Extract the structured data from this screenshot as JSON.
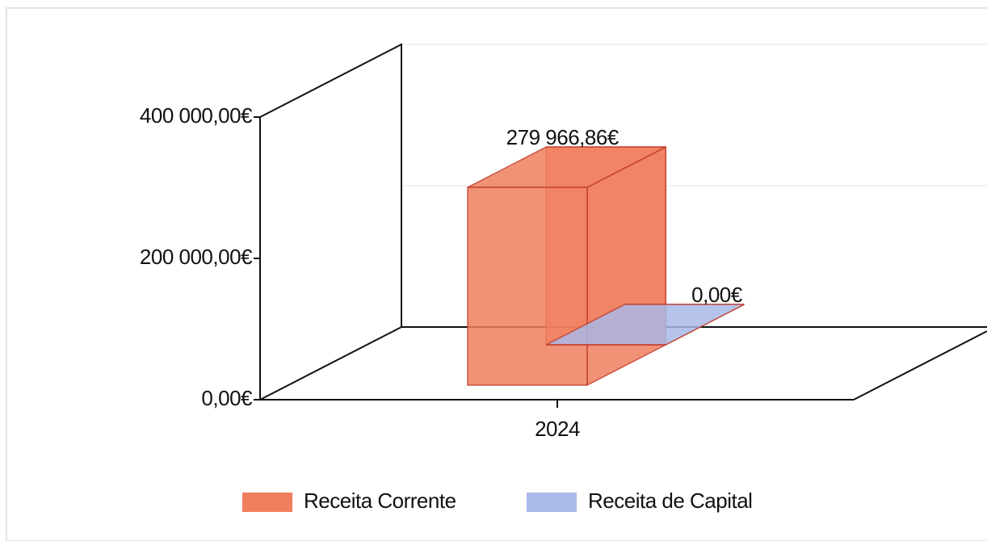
{
  "chart_data": {
    "type": "bar3d",
    "categories": [
      "2024"
    ],
    "series": [
      {
        "name": "Receita Corrente",
        "color": "#ef7f5e",
        "values": [
          279966.86
        ],
        "value_labels": [
          "279 966,86€"
        ]
      },
      {
        "name": "Receita de Capital",
        "color": "#a9b9e8",
        "values": [
          0
        ],
        "value_labels": [
          "0,00€"
        ]
      }
    ],
    "ylim": [
      0,
      400000
    ],
    "yticks": [
      {
        "value": 0,
        "label": "0,00€"
      },
      {
        "value": 200000,
        "label": "200 000,00€"
      },
      {
        "value": 400000,
        "label": "400 000,00€"
      }
    ],
    "grid": true,
    "legend": "bottom"
  }
}
